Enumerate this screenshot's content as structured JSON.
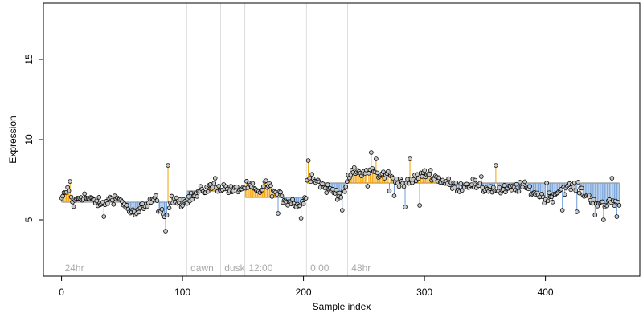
{
  "chart_data": {
    "type": "scatter",
    "xlabel": "Sample index",
    "ylabel": "Expression",
    "xlim": [
      -15,
      478
    ],
    "ylim": [
      1.5,
      18.5
    ],
    "x_ticks": [
      0,
      100,
      200,
      300,
      400
    ],
    "y_ticks": [
      5,
      10,
      15
    ],
    "grid": false,
    "legend": "none",
    "colors": {
      "above_mean": "#f4a000",
      "below_mean": "#6f9ed8",
      "segment_mean": "#999999",
      "point_fill": "#c8c8c8",
      "point_edge": "#000000",
      "divider": "#dddddd",
      "annotation": "#aaaaaa"
    },
    "segments": [
      {
        "label": "24hr",
        "start": 0,
        "end": 103,
        "mean": 6.1
      },
      {
        "label": "dawn",
        "start": 104,
        "end": 131,
        "mean": 6.8
      },
      {
        "label": "dusk",
        "start": 132,
        "end": 151,
        "mean": 6.9
      },
      {
        "label": "12:00",
        "start": 152,
        "end": 202,
        "mean": 6.4
      },
      {
        "label": "0:00",
        "start": 203,
        "end": 236,
        "mean": 7.3
      },
      {
        "label": "48hr",
        "start": 237,
        "end": 461,
        "mean": 7.3
      }
    ],
    "anchors": [
      [
        0,
        6.2
      ],
      [
        3,
        6.7
      ],
      [
        6,
        6.9
      ],
      [
        8,
        6.3
      ],
      [
        10,
        6.0
      ],
      [
        14,
        6.4
      ],
      [
        18,
        6.5
      ],
      [
        22,
        6.3
      ],
      [
        26,
        6.2
      ],
      [
        30,
        6.1
      ],
      [
        34,
        5.9
      ],
      [
        38,
        6.2
      ],
      [
        42,
        6.4
      ],
      [
        46,
        6.3
      ],
      [
        50,
        6.2
      ],
      [
        54,
        5.7
      ],
      [
        58,
        5.4
      ],
      [
        62,
        5.3
      ],
      [
        66,
        5.8
      ],
      [
        70,
        6.0
      ],
      [
        74,
        6.2
      ],
      [
        78,
        6.3
      ],
      [
        82,
        5.4
      ],
      [
        86,
        5.0
      ],
      [
        90,
        6.1
      ],
      [
        95,
        6.4
      ],
      [
        100,
        6.1
      ],
      [
        103,
        6.3
      ],
      [
        104,
        6.3
      ],
      [
        110,
        6.5
      ],
      [
        116,
        6.8
      ],
      [
        122,
        7.0
      ],
      [
        128,
        7.1
      ],
      [
        132,
        7.0
      ],
      [
        136,
        7.0
      ],
      [
        140,
        6.8
      ],
      [
        146,
        6.9
      ],
      [
        151,
        7.0
      ],
      [
        152,
        7.1
      ],
      [
        158,
        7.0
      ],
      [
        163,
        6.6
      ],
      [
        168,
        7.3
      ],
      [
        172,
        7.0
      ],
      [
        176,
        6.7
      ],
      [
        180,
        6.5
      ],
      [
        186,
        6.2
      ],
      [
        192,
        6.1
      ],
      [
        196,
        5.9
      ],
      [
        202,
        6.3
      ],
      [
        203,
        7.8
      ],
      [
        207,
        7.7
      ],
      [
        212,
        7.4
      ],
      [
        218,
        7.0
      ],
      [
        224,
        6.8
      ],
      [
        230,
        6.6
      ],
      [
        236,
        7.0
      ],
      [
        237,
        7.7
      ],
      [
        242,
        8.0
      ],
      [
        250,
        7.9
      ],
      [
        256,
        8.2
      ],
      [
        262,
        7.7
      ],
      [
        268,
        7.9
      ],
      [
        274,
        7.6
      ],
      [
        280,
        7.4
      ],
      [
        286,
        7.2
      ],
      [
        292,
        7.6
      ],
      [
        298,
        7.8
      ],
      [
        304,
        7.9
      ],
      [
        310,
        7.6
      ],
      [
        316,
        7.4
      ],
      [
        322,
        7.2
      ],
      [
        328,
        7.0
      ],
      [
        334,
        7.2
      ],
      [
        340,
        7.3
      ],
      [
        346,
        6.9
      ],
      [
        352,
        7.0
      ],
      [
        358,
        6.9
      ],
      [
        364,
        6.8
      ],
      [
        370,
        6.9
      ],
      [
        376,
        7.0
      ],
      [
        382,
        7.1
      ],
      [
        388,
        6.8
      ],
      [
        394,
        6.6
      ],
      [
        400,
        6.3
      ],
      [
        406,
        6.5
      ],
      [
        412,
        6.9
      ],
      [
        418,
        7.0
      ],
      [
        424,
        7.1
      ],
      [
        430,
        6.8
      ],
      [
        436,
        6.4
      ],
      [
        442,
        6.1
      ],
      [
        448,
        5.8
      ],
      [
        454,
        6.2
      ],
      [
        461,
        6.0
      ]
    ],
    "spikes": [
      {
        "x": 3,
        "y": 6.7
      },
      {
        "x": 7,
        "y": 7.4
      },
      {
        "x": 35,
        "y": 5.2
      },
      {
        "x": 86,
        "y": 4.3
      },
      {
        "x": 88,
        "y": 8.4
      },
      {
        "x": 99,
        "y": 5.8
      },
      {
        "x": 127,
        "y": 7.6
      },
      {
        "x": 179,
        "y": 5.4
      },
      {
        "x": 198,
        "y": 5.1
      },
      {
        "x": 204,
        "y": 8.7
      },
      {
        "x": 232,
        "y": 5.6
      },
      {
        "x": 253,
        "y": 7.1
      },
      {
        "x": 256,
        "y": 9.2
      },
      {
        "x": 260,
        "y": 8.8
      },
      {
        "x": 271,
        "y": 6.8
      },
      {
        "x": 275,
        "y": 6.5
      },
      {
        "x": 284,
        "y": 5.8
      },
      {
        "x": 288,
        "y": 8.8
      },
      {
        "x": 296,
        "y": 5.9
      },
      {
        "x": 347,
        "y": 7.7
      },
      {
        "x": 359,
        "y": 8.4
      },
      {
        "x": 401,
        "y": 7.3
      },
      {
        "x": 414,
        "y": 5.6
      },
      {
        "x": 426,
        "y": 5.5
      },
      {
        "x": 441,
        "y": 5.3
      },
      {
        "x": 448,
        "y": 5.0
      },
      {
        "x": 455,
        "y": 7.6
      },
      {
        "x": 459,
        "y": 5.2
      }
    ],
    "n_points": 462
  }
}
